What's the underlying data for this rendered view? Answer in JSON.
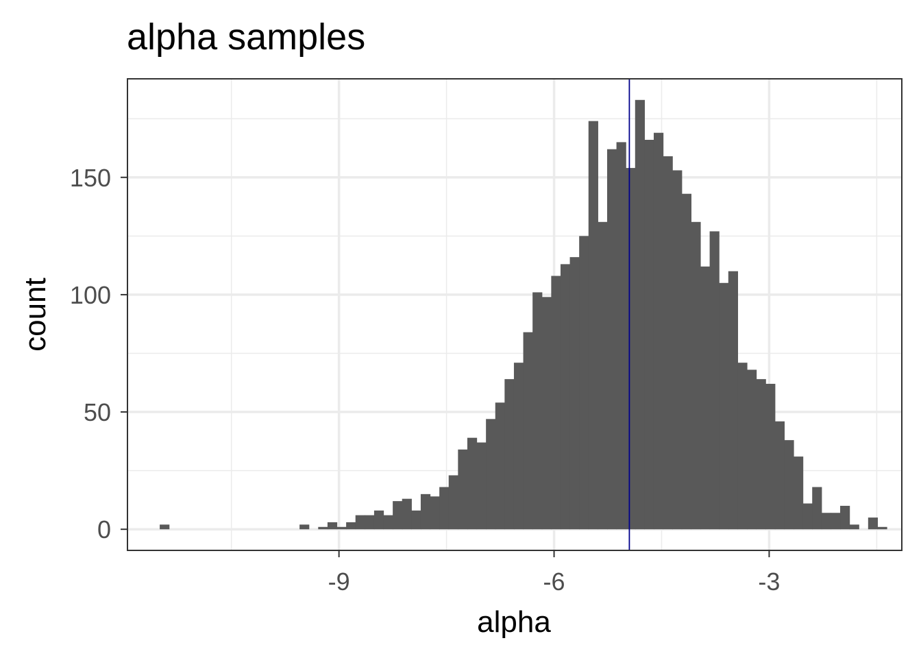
{
  "chart_data": {
    "type": "bar",
    "title": "alpha samples",
    "xlabel": "alpha",
    "ylabel": "count",
    "xlim": [
      -11.95,
      -1.15
    ],
    "ylim": [
      -9,
      192
    ],
    "x_ticks": [
      -9,
      -6,
      -3
    ],
    "x_tick_labels": [
      "-9",
      "-6",
      "-3"
    ],
    "x_minor_ticks": [
      -10.5,
      -7.5,
      -4.5,
      -1.5
    ],
    "y_ticks": [
      0,
      50,
      100,
      150
    ],
    "y_tick_labels": [
      "0",
      "50",
      "100",
      "150"
    ],
    "y_minor_ticks": [
      25,
      75,
      125,
      175
    ],
    "grid": true,
    "bin_width": 0.13,
    "bin_start": -11.5,
    "counts": [
      2,
      0,
      0,
      0,
      0,
      0,
      0,
      0,
      0,
      0,
      0,
      0,
      0,
      0,
      0,
      2,
      0,
      1,
      3,
      1,
      3,
      6,
      6,
      8,
      6,
      12,
      13,
      8,
      15,
      14,
      18,
      23,
      34,
      39,
      37,
      47,
      54,
      64,
      71,
      84,
      101,
      99,
      108,
      113,
      116,
      125,
      174,
      131,
      162,
      165,
      154,
      183,
      166,
      169,
      159,
      153,
      143,
      131,
      112,
      127,
      105,
      110,
      71,
      68,
      64,
      62,
      46,
      38,
      31,
      11,
      18,
      7,
      7,
      10,
      2,
      0,
      5,
      1
    ],
    "reference_line": {
      "x": -4.95,
      "color": "#00008b"
    },
    "bar_color": "#595959"
  }
}
